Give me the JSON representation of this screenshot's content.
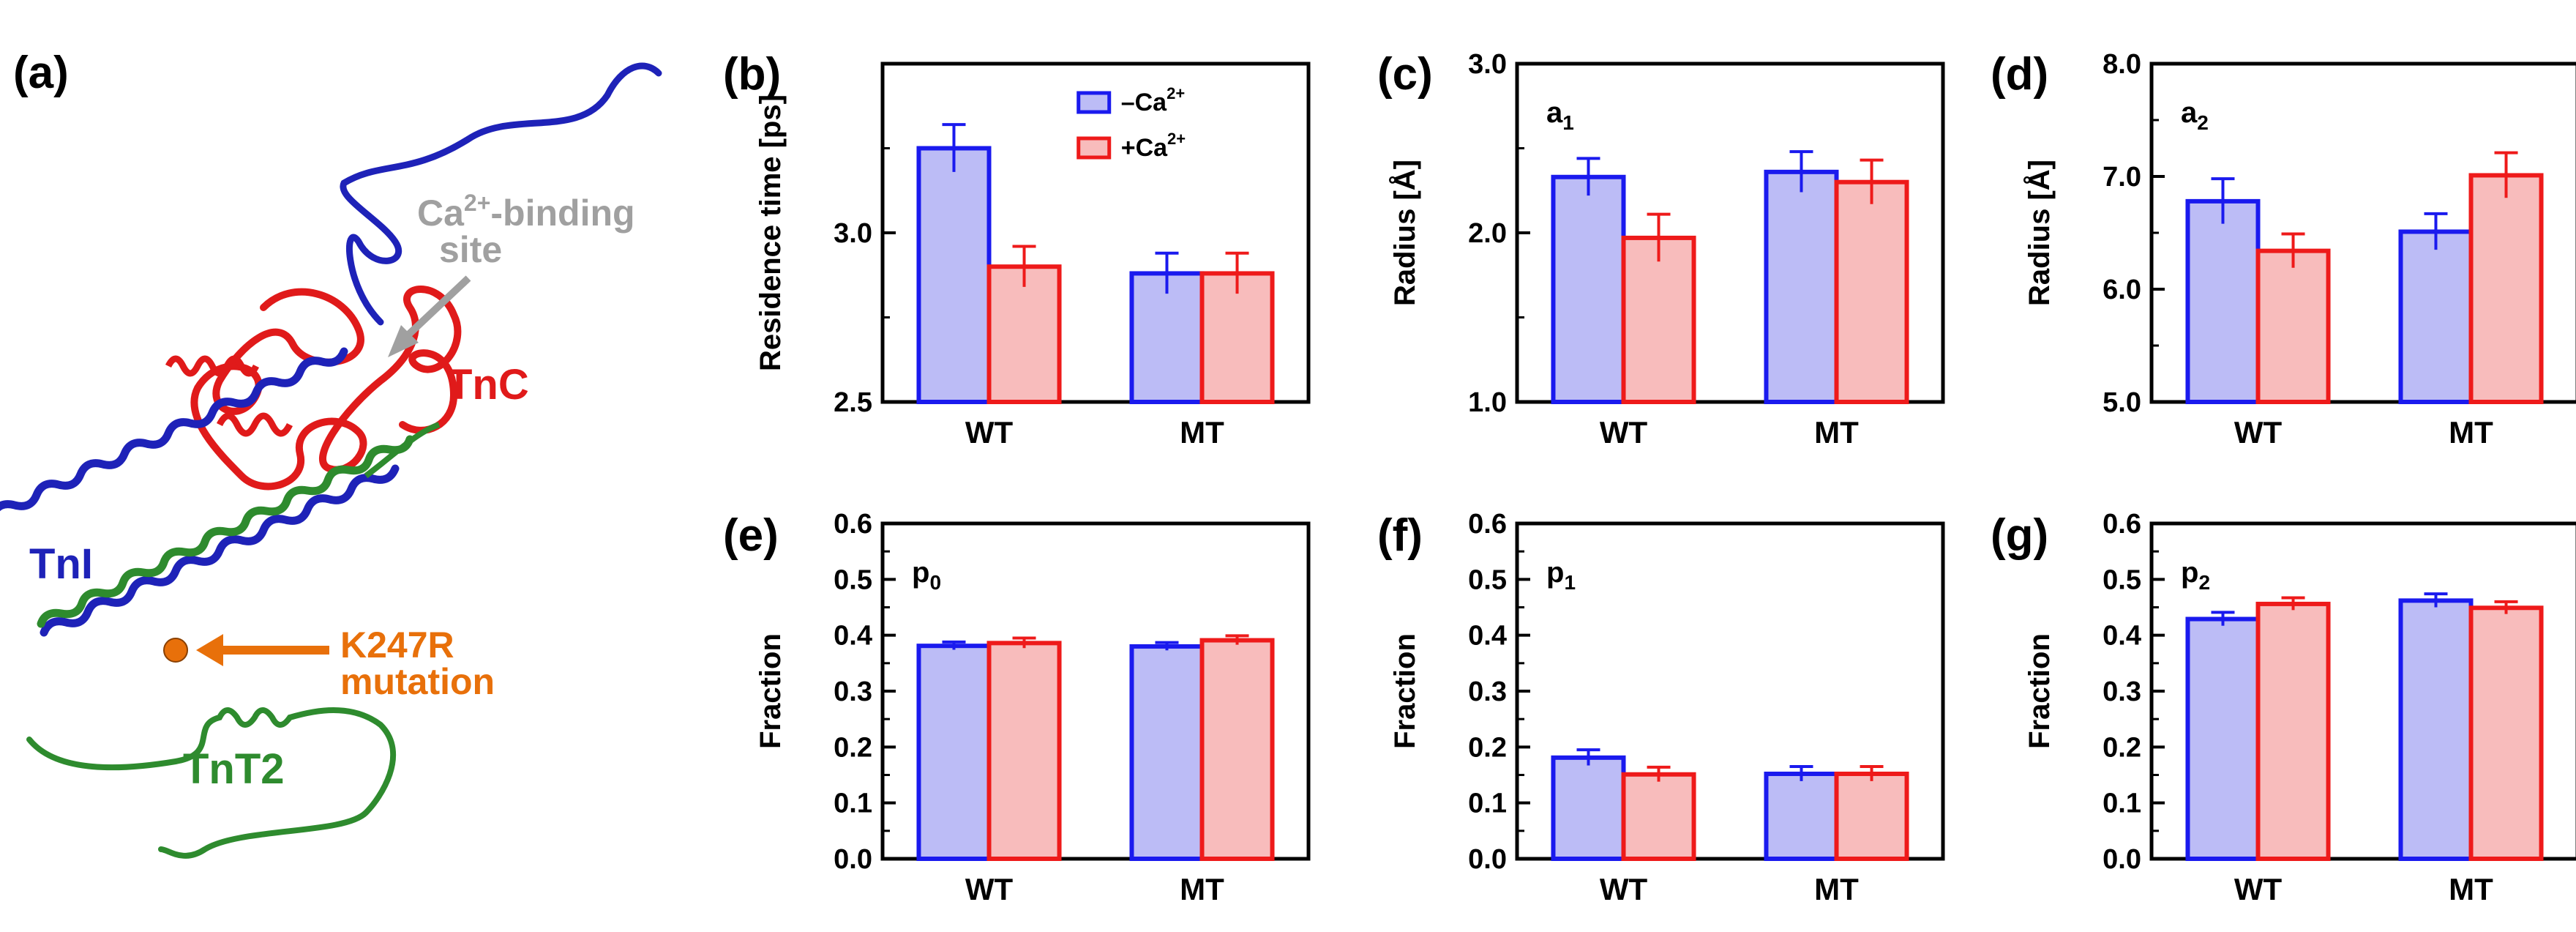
{
  "figure_labels": {
    "a": "(a)"
  },
  "structure": {
    "labels": {
      "ca_site": "Ca",
      "ca_sup": "2+",
      "ca_rest": "-binding",
      "ca_site2": "site",
      "tnc": "TnC",
      "tni": "TnI",
      "mutation1": "K247R",
      "mutation2": "mutation",
      "tnt2": "TnT2"
    },
    "colors": {
      "tni": "#1e22b8",
      "tnc": "#e01a1a",
      "tnt2": "#2e8b2e",
      "mutation": "#e8700a",
      "ca": "#a0a0a0"
    }
  },
  "legend": {
    "minus_prefix": "–Ca",
    "plus_prefix": "+Ca",
    "sup": "2+"
  },
  "series_colors": {
    "minus_edge": "#1a1aee",
    "minus_fill": "#bcbcf6",
    "plus_edge": "#ee1a1a",
    "plus_fill": "#f8bcbc"
  },
  "chart_data": [
    {
      "panel": "(b)",
      "type": "bar",
      "categories": [
        "WT",
        "MT"
      ],
      "series": [
        {
          "name": "–Ca2+",
          "values": [
            3.25,
            2.88
          ],
          "errors": [
            0.07,
            0.06
          ]
        },
        {
          "name": "+Ca2+",
          "values": [
            2.9,
            2.88
          ],
          "errors": [
            0.06,
            0.06
          ]
        }
      ],
      "ylabel": "Residence time [ps]",
      "ylim": [
        2.5,
        3.5
      ],
      "yticks": [
        2.5,
        3.0
      ],
      "tick_labels": [
        "2.5",
        "3.0"
      ],
      "inner_label": "",
      "legend": true
    },
    {
      "panel": "(c)",
      "type": "bar",
      "categories": [
        "WT",
        "MT"
      ],
      "series": [
        {
          "name": "–Ca2+",
          "values": [
            2.33,
            2.36
          ],
          "errors": [
            0.11,
            0.12
          ]
        },
        {
          "name": "+Ca2+",
          "values": [
            1.97,
            2.3
          ],
          "errors": [
            0.14,
            0.13
          ]
        }
      ],
      "ylabel": "Radius [Å]",
      "ylim": [
        1.0,
        3.0
      ],
      "yticks": [
        1.0,
        2.0,
        3.0
      ],
      "tick_labels": [
        "1.0",
        "2.0",
        "3.0"
      ],
      "inner_label": "a",
      "inner_sub": "1",
      "legend": false
    },
    {
      "panel": "(d)",
      "type": "bar",
      "categories": [
        "WT",
        "MT"
      ],
      "series": [
        {
          "name": "–Ca2+",
          "values": [
            6.78,
            6.51
          ],
          "errors": [
            0.2,
            0.16
          ]
        },
        {
          "name": "+Ca2+",
          "values": [
            6.34,
            7.01
          ],
          "errors": [
            0.15,
            0.2
          ]
        }
      ],
      "ylabel": "Radius [Å]",
      "ylim": [
        5.0,
        8.0
      ],
      "yticks": [
        5.0,
        6.0,
        7.0,
        8.0
      ],
      "tick_labels": [
        "5.0",
        "6.0",
        "7.0",
        "8.0"
      ],
      "inner_label": "a",
      "inner_sub": "2",
      "legend": false
    },
    {
      "panel": "(e)",
      "type": "bar",
      "categories": [
        "WT",
        "MT"
      ],
      "series": [
        {
          "name": "–Ca2+",
          "values": [
            0.381,
            0.38
          ],
          "errors": [
            0.007,
            0.007
          ]
        },
        {
          "name": "+Ca2+",
          "values": [
            0.386,
            0.391
          ],
          "errors": [
            0.009,
            0.008
          ]
        }
      ],
      "ylabel": "Fraction",
      "ylim": [
        0.0,
        0.6
      ],
      "yticks": [
        0.0,
        0.1,
        0.2,
        0.3,
        0.4,
        0.5,
        0.6
      ],
      "tick_labels": [
        "0.0",
        "0.1",
        "0.2",
        "0.3",
        "0.4",
        "0.5",
        "0.6"
      ],
      "inner_label": "p",
      "inner_sub": "0",
      "legend": false
    },
    {
      "panel": "(f)",
      "type": "bar",
      "categories": [
        "WT",
        "MT"
      ],
      "series": [
        {
          "name": "–Ca2+",
          "values": [
            0.181,
            0.152
          ],
          "errors": [
            0.014,
            0.013
          ]
        },
        {
          "name": "+Ca2+",
          "values": [
            0.151,
            0.152
          ],
          "errors": [
            0.013,
            0.013
          ]
        }
      ],
      "ylabel": "Fraction",
      "ylim": [
        0.0,
        0.6
      ],
      "yticks": [
        0.0,
        0.1,
        0.2,
        0.3,
        0.4,
        0.5,
        0.6
      ],
      "tick_labels": [
        "0.0",
        "0.1",
        "0.2",
        "0.3",
        "0.4",
        "0.5",
        "0.6"
      ],
      "inner_label": "p",
      "inner_sub": "1",
      "legend": false
    },
    {
      "panel": "(g)",
      "type": "bar",
      "categories": [
        "WT",
        "MT"
      ],
      "series": [
        {
          "name": "–Ca2+",
          "values": [
            0.429,
            0.462
          ],
          "errors": [
            0.012,
            0.012
          ]
        },
        {
          "name": "+Ca2+",
          "values": [
            0.456,
            0.449
          ],
          "errors": [
            0.011,
            0.011
          ]
        }
      ],
      "ylabel": "Fraction",
      "ylim": [
        0.0,
        0.6
      ],
      "yticks": [
        0.0,
        0.1,
        0.2,
        0.3,
        0.4,
        0.5,
        0.6
      ],
      "tick_labels": [
        "0.0",
        "0.1",
        "0.2",
        "0.3",
        "0.4",
        "0.5",
        "0.6"
      ],
      "inner_label": "p",
      "inner_sub": "2",
      "legend": false
    }
  ]
}
